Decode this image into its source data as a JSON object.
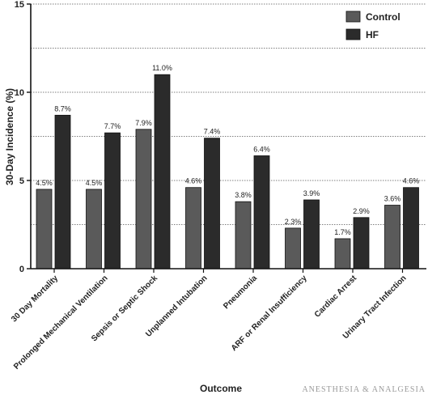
{
  "chart_data": {
    "type": "bar",
    "categories": [
      "30 Day Mortality",
      "Prolonged Mechanical Ventilation",
      "Sepsis or Septic Shock",
      "Unplanned Intubation",
      "Pneumonia",
      "ARF or Renal Insufficiency",
      "Cardiac Arrest",
      "Urinary Tract Infection"
    ],
    "series": [
      {
        "name": "Control",
        "color": "#5a5a5a",
        "values": [
          4.5,
          4.5,
          7.9,
          4.6,
          3.8,
          2.3,
          1.7,
          3.6
        ],
        "labels": [
          "4.5%",
          "4.5%",
          "7.9%",
          "4.6%",
          "3.8%",
          "2.3%",
          "1.7%",
          "3.6%"
        ]
      },
      {
        "name": "HF",
        "color": "#2b2b2b",
        "values": [
          8.7,
          7.7,
          11.0,
          7.4,
          6.4,
          3.9,
          2.9,
          4.6
        ],
        "labels": [
          "8.7%",
          "7.7%",
          "11.0%",
          "7.4%",
          "6.4%",
          "3.9%",
          "2.9%",
          "4.6%"
        ]
      }
    ],
    "xlabel": "Outcome",
    "ylabel": "30-Day Incidence (%)",
    "ylim": [
      0,
      15
    ],
    "yticks": [
      0,
      5,
      10,
      15
    ],
    "grid": true,
    "legend": "top-right"
  },
  "watermark": "ANESTHESIA & ANALGESIA"
}
